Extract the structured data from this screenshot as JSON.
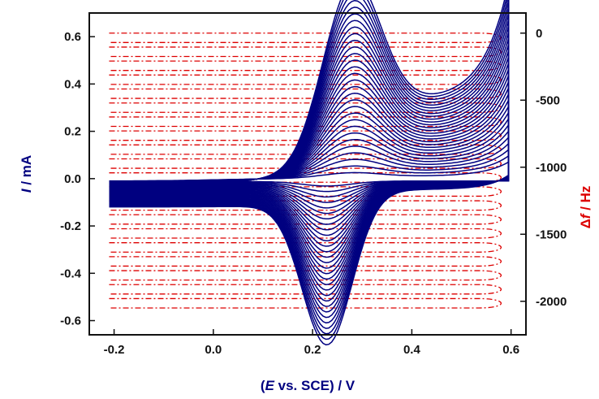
{
  "chart_data": {
    "type": "line",
    "title": "",
    "xlabel": "(E vs. SCE) / V",
    "xlabel_parts": [
      "(",
      "E",
      " vs. SCE) / V"
    ],
    "ylabel_left": "I / mA",
    "ylabel_left_parts": [
      "I",
      " / mA"
    ],
    "ylabel_right": "Δf / Hz",
    "ylabel_right_parts": [
      "Δ",
      "f",
      " / Hz"
    ],
    "x_range": [
      -0.25,
      0.63
    ],
    "y_left_range": [
      -0.66,
      0.7
    ],
    "y_right_range": [
      -2250,
      150
    ],
    "x_ticks": [
      {
        "value": -0.2,
        "label": "-0.2"
      },
      {
        "value": 0.0,
        "label": "0.0"
      },
      {
        "value": 0.2,
        "label": "0.2"
      },
      {
        "value": 0.4,
        "label": "0.4"
      },
      {
        "value": 0.6,
        "label": "0.6"
      }
    ],
    "y_left_ticks": [
      {
        "value": 0.6,
        "label": "0.6"
      },
      {
        "value": 0.4,
        "label": "0.4"
      },
      {
        "value": 0.2,
        "label": "0.2"
      },
      {
        "value": 0.0,
        "label": "0.0"
      },
      {
        "value": -0.2,
        "label": "-0.2"
      },
      {
        "value": -0.4,
        "label": "-0.4"
      },
      {
        "value": -0.6,
        "label": "-0.6"
      }
    ],
    "y_right_ticks": [
      {
        "value": 0,
        "label": "0"
      },
      {
        "value": -500,
        "label": "-500"
      },
      {
        "value": -1000,
        "label": "-1000"
      },
      {
        "value": -1500,
        "label": "-1500"
      },
      {
        "value": -2000,
        "label": "-2000"
      }
    ],
    "grid": false,
    "legend": "none",
    "colors": {
      "current": "#000080",
      "frequency": "#dd0000",
      "axis": "#111111"
    },
    "cv_series": {
      "name": "",
      "axis": "left",
      "x_start": -0.21,
      "x_vertex": 0.595,
      "cycle_count": 30,
      "anodic_peak_E": 0.275,
      "cathodic_peak_E": 0.23,
      "anodic_peak_current_range": [
        0.02,
        0.66
      ],
      "cathodic_peak_current_range": [
        -0.02,
        -0.62
      ],
      "baseline_current_range": [
        -0.01,
        -0.045
      ],
      "vertex_current_range": [
        0.06,
        0.5
      ]
    },
    "frequency_series": {
      "name": "",
      "axis": "right",
      "x_start": -0.21,
      "x_vertex": 0.595,
      "cycle_count": 20,
      "first_cycle_df_range": [
        0,
        -70
      ],
      "last_cycle_df_range": [
        -1980,
        -2050
      ],
      "turn_span_V": 0.06
    }
  }
}
